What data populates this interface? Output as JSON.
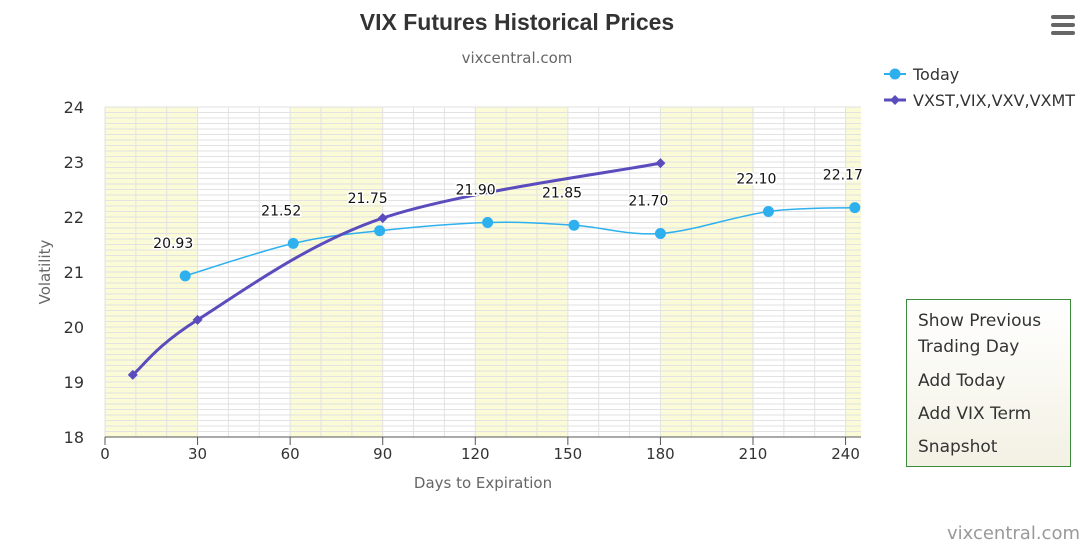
{
  "chart_data": {
    "type": "line",
    "title": "VIX Futures Historical Prices",
    "subtitle": "vixcentral.com",
    "xlabel": "Days to Expiration",
    "ylabel": "Volatility",
    "xlim": [
      0,
      245
    ],
    "ylim": [
      18,
      24
    ],
    "xticks": [
      0,
      30,
      60,
      90,
      120,
      150,
      180,
      210,
      240
    ],
    "yticks": [
      18,
      19,
      20,
      21,
      22,
      23,
      24
    ],
    "grid": true,
    "legend_position": "top-right",
    "series": [
      {
        "name": "Today",
        "color": "#2eb0ee",
        "marker": "circle",
        "x": [
          26,
          61,
          89,
          124,
          152,
          180,
          215,
          243
        ],
        "y": [
          20.93,
          21.52,
          21.75,
          21.9,
          21.85,
          21.7,
          22.1,
          22.17
        ],
        "labels": [
          "20.93",
          "21.52",
          "21.75",
          "21.90",
          "21.85",
          "21.70",
          "22.10",
          "22.17"
        ]
      },
      {
        "name": "VXST,VIX,VXV,VXMT",
        "color": "#5a4cbc",
        "marker": "diamond",
        "x": [
          9,
          30,
          90,
          180
        ],
        "y": [
          19.13,
          20.13,
          21.98,
          22.98
        ]
      }
    ],
    "shaded_bands": [
      [
        0,
        30
      ],
      [
        60,
        90
      ],
      [
        120,
        150
      ],
      [
        180,
        210
      ],
      [
        240,
        245
      ]
    ],
    "band_color": "#fbfbd8"
  },
  "watermark": "vixcentral.com",
  "context_menu": {
    "items": [
      "Show Previous",
      "Trading Day",
      "Add Today",
      "Add VIX Term",
      "Snapshot"
    ]
  }
}
